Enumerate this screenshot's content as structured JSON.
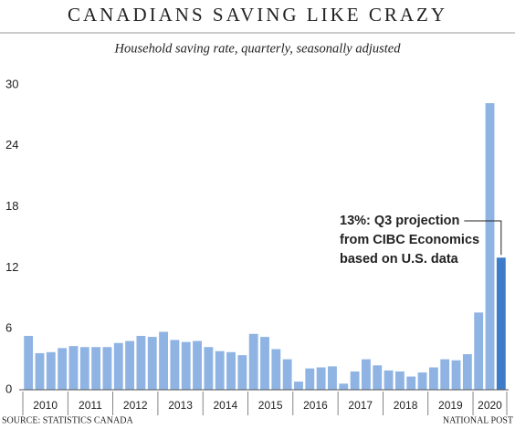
{
  "chart_data": {
    "type": "bar",
    "title": "CANADIANS SAVING LIKE CRAZY",
    "subtitle": "Household saving rate, quarterly, seasonally adjusted",
    "source": "SOURCE: STATISTICS CANADA",
    "credit": "NATIONAL POST",
    "categories": [
      "2010",
      null,
      null,
      null,
      "2011",
      null,
      null,
      null,
      "2012",
      null,
      null,
      null,
      "2013",
      null,
      null,
      null,
      "2014",
      null,
      null,
      null,
      "2015",
      null,
      null,
      null,
      "2016",
      null,
      null,
      null,
      "2017",
      null,
      null,
      null,
      "2018",
      null,
      null,
      null,
      "2019",
      null,
      null,
      null,
      "2020",
      null,
      null
    ],
    "series": [
      {
        "color": "#8fb4e3",
        "values": [
          5.3,
          3.6,
          3.7,
          4.1,
          4.3,
          4.2,
          4.2,
          4.2,
          4.6,
          4.8,
          5.3,
          5.2,
          5.7,
          4.9,
          4.7,
          4.8,
          4.2,
          3.8,
          3.7,
          3.4,
          5.5,
          5.2,
          4.0,
          3.0,
          0.8,
          2.1,
          2.2,
          2.3,
          0.6,
          1.8,
          3.0,
          2.4,
          1.9,
          1.8,
          1.3,
          1.7,
          2.2,
          3.0,
          2.9,
          3.5,
          7.6,
          28.2,
          null
        ]
      },
      {
        "color": "#3d7cc9",
        "values": [
          null,
          null,
          null,
          null,
          null,
          null,
          null,
          null,
          null,
          null,
          null,
          null,
          null,
          null,
          null,
          null,
          null,
          null,
          null,
          null,
          null,
          null,
          null,
          null,
          null,
          null,
          null,
          null,
          null,
          null,
          null,
          null,
          null,
          null,
          null,
          null,
          null,
          null,
          null,
          null,
          null,
          null,
          13
        ]
      }
    ],
    "annotation": [
      "13%: Q3 projection",
      "from CIBC Economics",
      "based on U.S. data"
    ],
    "ylim": [
      0,
      30
    ],
    "yticks": [
      0,
      6,
      12,
      18,
      24,
      30
    ],
    "grid": false
  }
}
